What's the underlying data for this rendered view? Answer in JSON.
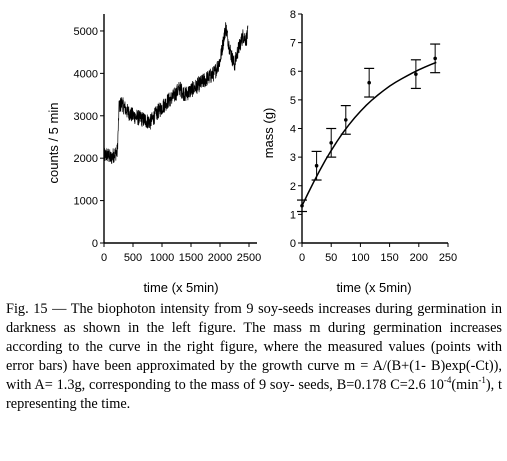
{
  "chart_data": [
    {
      "type": "line",
      "xlabel": "time (x 5min)",
      "ylabel": "counts / 5 min",
      "xlim": [
        0,
        2500
      ],
      "ylim": [
        0,
        5400
      ],
      "xticks": [
        0,
        500,
        1000,
        1500,
        2000,
        2500
      ],
      "yticks": [
        0,
        1000,
        2000,
        3000,
        4000,
        5000
      ],
      "grid": false,
      "series": [
        {
          "x": [
            0,
            60,
            120,
            180,
            230,
            260,
            300,
            400,
            500,
            600,
            700,
            800,
            900,
            1000,
            1100,
            1200,
            1300,
            1400,
            1500,
            1600,
            1700,
            1800,
            1900,
            2000,
            2050,
            2100,
            2150,
            2200,
            2250,
            2300,
            2350,
            2400,
            2450,
            2480
          ],
          "values": [
            2050,
            2080,
            2000,
            2100,
            2150,
            3200,
            3300,
            3100,
            3000,
            2950,
            2900,
            2850,
            3050,
            3200,
            3350,
            3450,
            3650,
            3500,
            3600,
            3700,
            3800,
            3900,
            4000,
            4300,
            4700,
            5100,
            4700,
            4400,
            4200,
            4500,
            4700,
            4900,
            4800,
            4950
          ]
        }
      ]
    },
    {
      "type": "scatter",
      "xlabel": "time (x 5min)",
      "ylabel": "mass (g)",
      "xlim": [
        0,
        250
      ],
      "ylim": [
        0,
        8
      ],
      "xticks": [
        0,
        50,
        100,
        150,
        200,
        250
      ],
      "yticks": [
        0,
        1,
        2,
        3,
        4,
        5,
        6,
        7,
        8
      ],
      "grid": false,
      "points": [
        {
          "x": 0,
          "y": 1.3,
          "err": 0.2
        },
        {
          "x": 25,
          "y": 2.7,
          "err": 0.5
        },
        {
          "x": 50,
          "y": 3.5,
          "err": 0.5
        },
        {
          "x": 75,
          "y": 4.3,
          "err": 0.5
        },
        {
          "x": 115,
          "y": 5.6,
          "err": 0.5
        },
        {
          "x": 195,
          "y": 5.9,
          "err": 0.5
        },
        {
          "x": 228,
          "y": 6.45,
          "err": 0.5
        }
      ],
      "curve": {
        "x": [
          0,
          10,
          20,
          30,
          40,
          50,
          60,
          70,
          80,
          90,
          100,
          110,
          120,
          130,
          140,
          150,
          160,
          170,
          180,
          190,
          200,
          210,
          220,
          230
        ],
        "values": [
          1.3,
          1.72,
          2.13,
          2.52,
          2.89,
          3.23,
          3.55,
          3.85,
          4.12,
          4.37,
          4.6,
          4.81,
          5.0,
          5.17,
          5.33,
          5.48,
          5.61,
          5.73,
          5.84,
          5.95,
          6.05,
          6.14,
          6.23,
          6.31
        ]
      }
    }
  ],
  "caption": {
    "line1": "Fig. 15 — The biophoton intensity from 9 soy-seeds increases",
    "line2": "during germination in darkness as shown in the left figure. The",
    "line3": "mass m during germination increases according to the curve in the",
    "line4": "right figure, where the measured values (points with error bars)",
    "line5": "have been approximated by the growth curve m = A/(B+(1-",
    "line6": "B)exp(-Ct)), with A= 1.3g, corresponding to the mass of 9 soy-",
    "line7_a": "seeds, B=0.178 C=2.6 10",
    "line7_sup1": "-4",
    "line7_b": "(min",
    "line7_sup2": "-1",
    "line7_c": "), t representing the time."
  }
}
